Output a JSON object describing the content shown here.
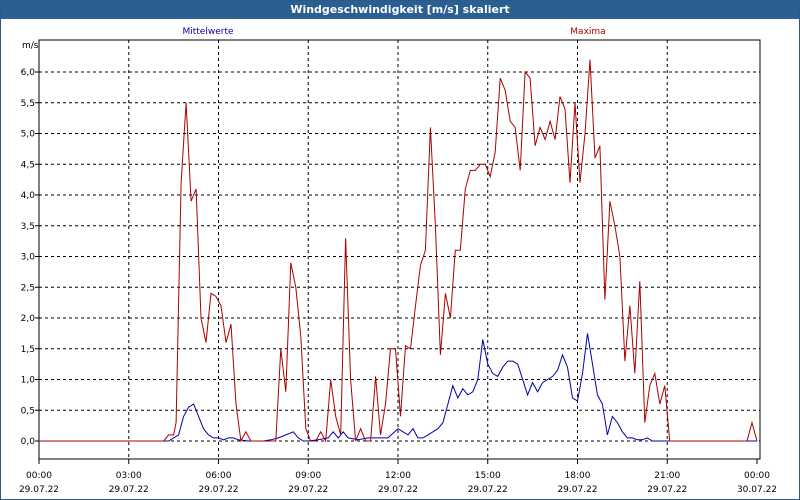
{
  "window": {
    "title": "Windgeschwindigkeit [m/s] skaliert"
  },
  "chart_data": {
    "type": "line",
    "title": "Windgeschwindigkeit [m/s] skaliert",
    "ylabel": "m/s",
    "xlabel": "",
    "ylim": [
      0,
      6.5
    ],
    "xlim_hours": [
      0,
      24
    ],
    "y_ticks": [
      "0,0",
      "0,5",
      "1,0",
      "1,5",
      "2,0",
      "2,5",
      "3,0",
      "3,5",
      "4,0",
      "4,5",
      "5,0",
      "5,5",
      "6,0"
    ],
    "x_ticks": [
      {
        "time": "00:00",
        "date": "29.07.22"
      },
      {
        "time": "03:00",
        "date": "29.07.22"
      },
      {
        "time": "06:00",
        "date": "29.07.22"
      },
      {
        "time": "09:00",
        "date": "29.07.22"
      },
      {
        "time": "12:00",
        "date": "29.07.22"
      },
      {
        "time": "15:00",
        "date": "29.07.22"
      },
      {
        "time": "18:00",
        "date": "29.07.22"
      },
      {
        "time": "21:00",
        "date": "29.07.22"
      },
      {
        "time": "00:00",
        "date": "30.07.22"
      }
    ],
    "grid": true,
    "colors": {
      "mittelwerte": "#0000aa",
      "maxima": "#aa0000",
      "grid": "#000000"
    },
    "series": [
      {
        "name": "Mittelwerte",
        "color": "#0000aa",
        "points": [
          [
            "00:00",
            0
          ],
          [
            "04:20",
            0
          ],
          [
            "04:40",
            0.1
          ],
          [
            "04:50",
            0.4
          ],
          [
            "05:00",
            0.55
          ],
          [
            "05:10",
            0.6
          ],
          [
            "05:20",
            0.4
          ],
          [
            "05:30",
            0.2
          ],
          [
            "05:40",
            0.1
          ],
          [
            "05:50",
            0.05
          ],
          [
            "06:00",
            0.05
          ],
          [
            "06:10",
            0.02
          ],
          [
            "06:20",
            0.05
          ],
          [
            "06:30",
            0.05
          ],
          [
            "06:40",
            0.02
          ],
          [
            "07:00",
            0
          ],
          [
            "07:30",
            0
          ],
          [
            "07:45",
            0.02
          ],
          [
            "08:00",
            0.05
          ],
          [
            "08:15",
            0.1
          ],
          [
            "08:30",
            0.15
          ],
          [
            "08:40",
            0.05
          ],
          [
            "08:50",
            0
          ],
          [
            "09:00",
            0
          ],
          [
            "09:20",
            0.02
          ],
          [
            "09:40",
            0.05
          ],
          [
            "09:50",
            0.15
          ],
          [
            "10:00",
            0.05
          ],
          [
            "10:10",
            0.15
          ],
          [
            "10:20",
            0.05
          ],
          [
            "10:40",
            0.02
          ],
          [
            "11:00",
            0.05
          ],
          [
            "11:20",
            0.05
          ],
          [
            "11:40",
            0.05
          ],
          [
            "12:00",
            0.2
          ],
          [
            "12:10",
            0.15
          ],
          [
            "12:20",
            0.1
          ],
          [
            "12:30",
            0.2
          ],
          [
            "12:40",
            0.05
          ],
          [
            "12:50",
            0.05
          ],
          [
            "13:00",
            0.1
          ],
          [
            "13:10",
            0.15
          ],
          [
            "13:20",
            0.2
          ],
          [
            "13:30",
            0.3
          ],
          [
            "13:40",
            0.6
          ],
          [
            "13:50",
            0.9
          ],
          [
            "14:00",
            0.7
          ],
          [
            "14:10",
            0.85
          ],
          [
            "14:20",
            0.75
          ],
          [
            "14:30",
            0.8
          ],
          [
            "14:40",
            1.0
          ],
          [
            "14:50",
            1.65
          ],
          [
            "15:00",
            1.25
          ],
          [
            "15:10",
            1.1
          ],
          [
            "15:20",
            1.05
          ],
          [
            "15:30",
            1.2
          ],
          [
            "15:40",
            1.3
          ],
          [
            "15:50",
            1.3
          ],
          [
            "16:00",
            1.25
          ],
          [
            "16:10",
            1.0
          ],
          [
            "16:20",
            0.75
          ],
          [
            "16:30",
            0.95
          ],
          [
            "16:40",
            0.8
          ],
          [
            "16:50",
            0.95
          ],
          [
            "17:00",
            1.0
          ],
          [
            "17:10",
            1.05
          ],
          [
            "17:20",
            1.15
          ],
          [
            "17:30",
            1.4
          ],
          [
            "17:40",
            1.2
          ],
          [
            "17:50",
            0.7
          ],
          [
            "18:00",
            0.65
          ],
          [
            "18:10",
            1.1
          ],
          [
            "18:20",
            1.75
          ],
          [
            "18:30",
            1.25
          ],
          [
            "18:40",
            0.75
          ],
          [
            "18:50",
            0.6
          ],
          [
            "19:00",
            0.1
          ],
          [
            "19:10",
            0.4
          ],
          [
            "19:20",
            0.3
          ],
          [
            "19:30",
            0.15
          ],
          [
            "19:40",
            0.05
          ],
          [
            "19:50",
            0.05
          ],
          [
            "20:00",
            0.02
          ],
          [
            "20:10",
            0.02
          ],
          [
            "20:20",
            0.05
          ],
          [
            "20:30",
            0
          ],
          [
            "24:00",
            0
          ]
        ]
      },
      {
        "name": "Maxima",
        "color": "#aa0000",
        "points": [
          [
            "00:00",
            0
          ],
          [
            "04:10",
            0
          ],
          [
            "04:20",
            0.1
          ],
          [
            "04:30",
            0.1
          ],
          [
            "04:35",
            0.3
          ],
          [
            "04:45",
            4.2
          ],
          [
            "04:55",
            5.5
          ],
          [
            "05:05",
            3.9
          ],
          [
            "05:15",
            4.1
          ],
          [
            "05:25",
            2.0
          ],
          [
            "05:35",
            1.6
          ],
          [
            "05:45",
            2.4
          ],
          [
            "05:55",
            2.35
          ],
          [
            "06:05",
            2.2
          ],
          [
            "06:15",
            1.6
          ],
          [
            "06:25",
            1.9
          ],
          [
            "06:35",
            0.6
          ],
          [
            "06:45",
            0
          ],
          [
            "06:55",
            0.15
          ],
          [
            "07:05",
            0
          ],
          [
            "07:55",
            0
          ],
          [
            "08:05",
            1.5
          ],
          [
            "08:15",
            0.8
          ],
          [
            "08:25",
            2.9
          ],
          [
            "08:35",
            2.5
          ],
          [
            "08:45",
            1.7
          ],
          [
            "08:55",
            0.2
          ],
          [
            "09:05",
            0
          ],
          [
            "09:15",
            0
          ],
          [
            "09:25",
            0.15
          ],
          [
            "09:35",
            0
          ],
          [
            "09:45",
            1.0
          ],
          [
            "09:55",
            0.4
          ],
          [
            "10:05",
            0.1
          ],
          [
            "10:15",
            3.3
          ],
          [
            "10:25",
            1.0
          ],
          [
            "10:35",
            0
          ],
          [
            "10:45",
            0.2
          ],
          [
            "10:55",
            0
          ],
          [
            "11:05",
            0
          ],
          [
            "11:15",
            1.05
          ],
          [
            "11:25",
            0.1
          ],
          [
            "11:35",
            0.6
          ],
          [
            "11:45",
            1.5
          ],
          [
            "11:55",
            1.5
          ],
          [
            "12:05",
            0.4
          ],
          [
            "12:15",
            1.55
          ],
          [
            "12:25",
            1.5
          ],
          [
            "12:35",
            2.2
          ],
          [
            "12:45",
            2.85
          ],
          [
            "12:55",
            3.1
          ],
          [
            "13:05",
            5.1
          ],
          [
            "13:15",
            3.5
          ],
          [
            "13:25",
            1.4
          ],
          [
            "13:35",
            2.4
          ],
          [
            "13:45",
            2.0
          ],
          [
            "13:55",
            3.1
          ],
          [
            "14:05",
            3.1
          ],
          [
            "14:15",
            4.1
          ],
          [
            "14:25",
            4.4
          ],
          [
            "14:35",
            4.4
          ],
          [
            "14:45",
            4.5
          ],
          [
            "14:55",
            4.5
          ],
          [
            "15:05",
            4.3
          ],
          [
            "15:15",
            4.7
          ],
          [
            "15:25",
            5.9
          ],
          [
            "15:35",
            5.7
          ],
          [
            "15:45",
            5.2
          ],
          [
            "15:55",
            5.1
          ],
          [
            "16:05",
            4.4
          ],
          [
            "16:15",
            6.0
          ],
          [
            "16:25",
            5.9
          ],
          [
            "16:35",
            4.8
          ],
          [
            "16:45",
            5.1
          ],
          [
            "16:55",
            4.9
          ],
          [
            "17:05",
            5.2
          ],
          [
            "17:15",
            4.9
          ],
          [
            "17:25",
            5.6
          ],
          [
            "17:35",
            5.4
          ],
          [
            "17:45",
            4.2
          ],
          [
            "17:55",
            5.5
          ],
          [
            "18:05",
            4.2
          ],
          [
            "18:15",
            5.0
          ],
          [
            "18:25",
            6.2
          ],
          [
            "18:35",
            4.6
          ],
          [
            "18:45",
            4.8
          ],
          [
            "18:55",
            2.3
          ],
          [
            "19:05",
            3.9
          ],
          [
            "19:15",
            3.5
          ],
          [
            "19:25",
            3.0
          ],
          [
            "19:35",
            1.3
          ],
          [
            "19:45",
            2.2
          ],
          [
            "19:55",
            1.1
          ],
          [
            "20:05",
            2.6
          ],
          [
            "20:15",
            0.3
          ],
          [
            "20:25",
            0.9
          ],
          [
            "20:35",
            1.1
          ],
          [
            "20:45",
            0.6
          ],
          [
            "20:55",
            0.9
          ],
          [
            "21:05",
            0
          ],
          [
            "23:40",
            0
          ],
          [
            "23:50",
            0.3
          ],
          [
            "24:00",
            0
          ]
        ]
      }
    ]
  }
}
